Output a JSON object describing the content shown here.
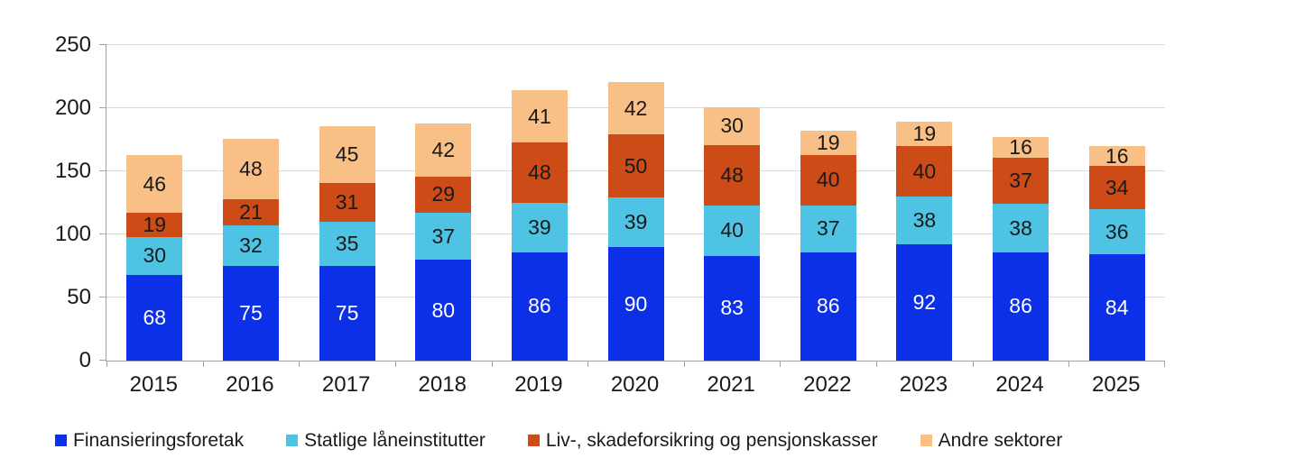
{
  "chart_data": {
    "type": "bar",
    "stacked": true,
    "title": "",
    "categories": [
      "2015",
      "2016",
      "2017",
      "2018",
      "2019",
      "2020",
      "2021",
      "2022",
      "2023",
      "2024",
      "2025"
    ],
    "series": [
      {
        "name": "Finansieringsforetak",
        "color": "#0c2fe8",
        "label_color": "#ffffff",
        "values": [
          68,
          75,
          75,
          80,
          86,
          90,
          83,
          86,
          92,
          86,
          84
        ]
      },
      {
        "name": "Statlige låneinstitutter",
        "color": "#4ec3e3",
        "label_color": "#1a1a1a",
        "values": [
          30,
          32,
          35,
          37,
          39,
          39,
          40,
          37,
          38,
          38,
          36
        ]
      },
      {
        "name": "Liv-, skadeforsikring og pensjonskasser",
        "color": "#cc4b16",
        "label_color": "#1a1a1a",
        "values": [
          19,
          21,
          31,
          29,
          48,
          50,
          48,
          40,
          40,
          37,
          34
        ]
      },
      {
        "name": "Andre sektorer",
        "color": "#f8bf86",
        "label_color": "#1a1a1a",
        "values": [
          46,
          48,
          45,
          42,
          41,
          42,
          30,
          19,
          19,
          16,
          16
        ]
      }
    ],
    "ylim": [
      0,
      250
    ],
    "y_ticks": [
      0,
      50,
      100,
      150,
      200,
      250
    ],
    "grid": true,
    "legend_position": "bottom"
  },
  "style": {
    "grid_color": "#d9d9d9",
    "axis_color": "#a3a3a3",
    "text_color": "#1a1a1a",
    "background": "#ffffff"
  }
}
